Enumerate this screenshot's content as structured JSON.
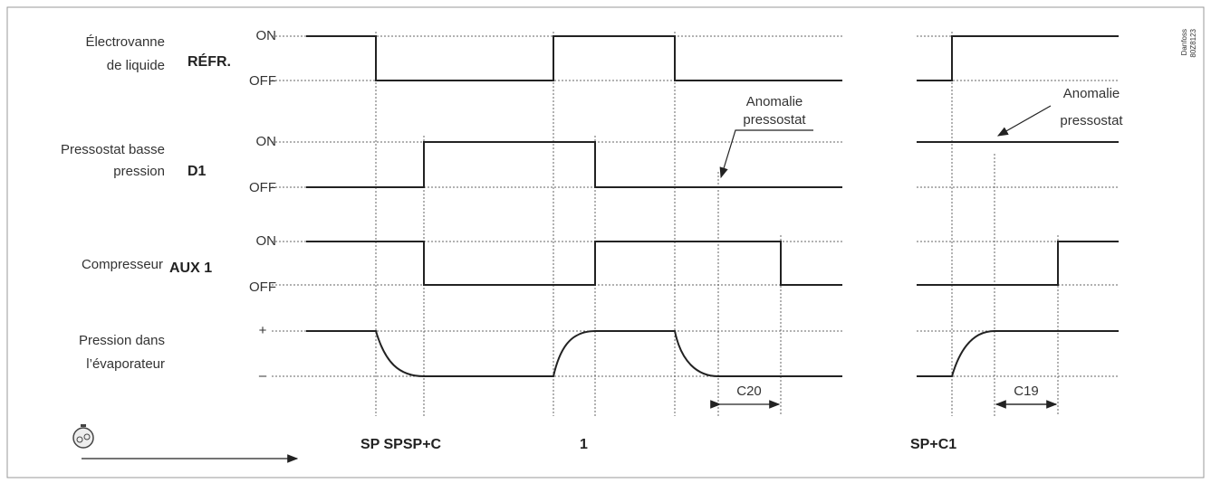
{
  "rows": [
    {
      "label": [
        "Électrovanne",
        "de liquide"
      ],
      "signal": "RÉFR.",
      "levels": [
        "ON",
        "OFF"
      ]
    },
    {
      "label": [
        "Pressostat basse",
        "pression"
      ],
      "signal": "D1",
      "levels": [
        "ON",
        "OFF"
      ]
    },
    {
      "label": [
        "Compresseur"
      ],
      "signal": "AUX 1",
      "levels": [
        "ON",
        "OFF"
      ]
    },
    {
      "label": [
        "Pression dans",
        "l’évaporateur"
      ],
      "levels": [
        "+",
        "–"
      ]
    }
  ],
  "annotations": [
    {
      "lines": [
        "Anomalie",
        "pressostat"
      ]
    },
    {
      "lines": [
        "Anomalie",
        "pressostat"
      ]
    }
  ],
  "intervals": [
    "C20",
    "C19"
  ],
  "time_labels": [
    "SP SPSP+C",
    "1",
    "SP+C1"
  ],
  "reference": [
    "Danfoss",
    "80Z8123"
  ]
}
